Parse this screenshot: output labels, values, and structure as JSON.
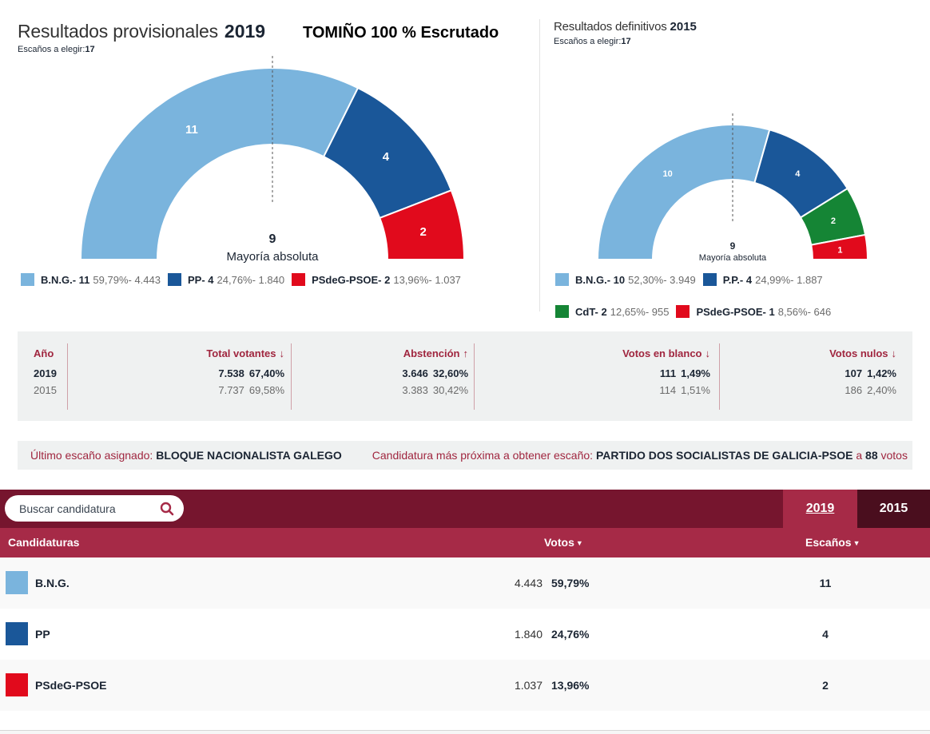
{
  "left_header": {
    "title": "Resultados provisionales",
    "year": "2019",
    "seats_label": "Escaños a elegir:",
    "seats_value": "17",
    "scrutiny": "TOMIÑO 100 % Escrutado"
  },
  "right_header": {
    "title": "Resultados definitivos",
    "year": "2015",
    "seats_label": "Escaños a elegir:",
    "seats_value": "17"
  },
  "chart_data": [
    {
      "type": "pie",
      "subtype": "semicircle-parliament",
      "title": "Resultados provisionales 2019",
      "total_seats": 17,
      "majority": 9,
      "majority_label": "Mayoría absoluta",
      "categories": [
        "B.N.G.",
        "PP",
        "PSdeG-PSOE"
      ],
      "values": [
        11,
        4,
        2
      ],
      "colors": [
        "#7ab4dd",
        "#1a5799",
        "#e10a1c"
      ],
      "legend": [
        {
          "name": "B.N.G.- 11",
          "stat": "59,79%- 4.443"
        },
        {
          "name": "PP- 4",
          "stat": "24,76%- 1.840"
        },
        {
          "name": "PSdeG-PSOE- 2",
          "stat": "13,96%- 1.037"
        }
      ],
      "legend_position": "bottom"
    },
    {
      "type": "pie",
      "subtype": "semicircle-parliament",
      "title": "Resultados definitivos 2015",
      "total_seats": 17,
      "majority": 9,
      "majority_label": "Mayoría absoluta",
      "categories": [
        "B.N.G.",
        "P.P.",
        "CdT",
        "PSdeG-PSOE"
      ],
      "values": [
        10,
        4,
        2,
        1
      ],
      "colors": [
        "#7ab4dd",
        "#1a5799",
        "#158535",
        "#e10a1c"
      ],
      "legend": [
        {
          "name": "B.N.G.- 10",
          "stat": "52,30%- 3.949"
        },
        {
          "name": "P.P.- 4",
          "stat": "24,99%- 1.887"
        },
        {
          "name": "CdT- 2",
          "stat": "12,65%- 955"
        },
        {
          "name": "PSdeG-PSOE- 1",
          "stat": "8,56%- 646"
        }
      ],
      "legend_position": "bottom"
    }
  ],
  "stats": {
    "headers": {
      "year": "Año",
      "total": "Total votantes",
      "abstention": "Abstención",
      "blank": "Votos en blanco",
      "null": "Votos nulos"
    },
    "arrows": {
      "total": "↓",
      "abstention": "↑",
      "blank": "↓",
      "null": "↓"
    },
    "rows": [
      {
        "year": "2019",
        "total": "7.538",
        "total_pct": "67,40%",
        "abstention": "3.646",
        "abstention_pct": "32,60%",
        "blank": "111",
        "blank_pct": "1,49%",
        "null": "107",
        "null_pct": "1,42%"
      },
      {
        "year": "2015",
        "total": "7.737",
        "total_pct": "69,58%",
        "abstention": "3.383",
        "abstention_pct": "30,42%",
        "blank": "114",
        "blank_pct": "1,51%",
        "null": "186",
        "null_pct": "2,40%"
      }
    ]
  },
  "info": {
    "last_seat_label": "Último escaño asignado:",
    "last_seat_value": "BLOQUE NACIONALISTA GALEGO",
    "next_label": "Candidatura más próxima a obtener escaño:",
    "next_value": "PARTIDO DOS SOCIALISTAS DE GALICIA-PSOE",
    "next_a": "a",
    "next_votes": "88",
    "next_votes_label": "votos"
  },
  "results": {
    "search_placeholder": "Buscar candidatura",
    "tabs": [
      "2019",
      "2015"
    ],
    "active_tab": "2019",
    "columns": {
      "name": "Candidaturas",
      "votes": "Votos",
      "seats": "Escaños",
      "sort_icon": "▼"
    },
    "rows": [
      {
        "name": "B.N.G.",
        "color": "#7ab4dd",
        "votes": "4.443",
        "pct": "59,79%",
        "seats": "11"
      },
      {
        "name": "PP",
        "color": "#1a5799",
        "votes": "1.840",
        "pct": "24,76%",
        "seats": "4"
      },
      {
        "name": "PSdeG-PSOE",
        "color": "#e10a1c",
        "votes": "1.037",
        "pct": "13,96%",
        "seats": "2"
      }
    ]
  }
}
